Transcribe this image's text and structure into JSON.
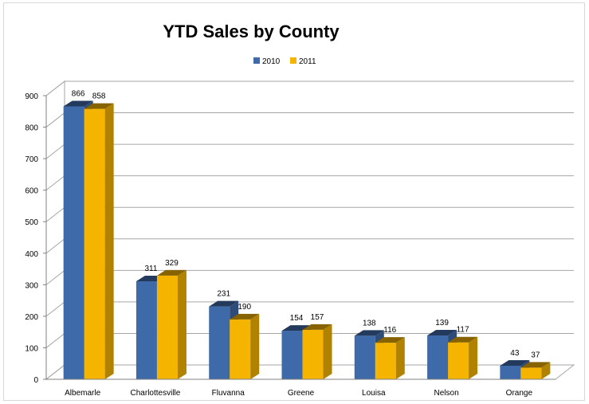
{
  "chart_data": {
    "type": "bar",
    "title": "YTD Sales by County",
    "xlabel": "",
    "ylabel": "",
    "categories": [
      "Albemarle",
      "Charlottesville",
      "Fluvanna",
      "Greene",
      "Louisa",
      "Nelson",
      "Orange"
    ],
    "series": [
      {
        "name": "2010",
        "values": [
          866,
          311,
          231,
          154,
          138,
          139,
          43
        ],
        "color": "#3f6aa9"
      },
      {
        "name": "2011",
        "values": [
          858,
          329,
          190,
          157,
          116,
          117,
          37
        ],
        "color": "#f4b400"
      }
    ],
    "ylim": [
      0,
      900
    ],
    "yticks": [
      0,
      100,
      200,
      300,
      400,
      500,
      600,
      700,
      800,
      900
    ],
    "grid": true,
    "legend": "top-center",
    "style": "3d-clustered-column"
  }
}
